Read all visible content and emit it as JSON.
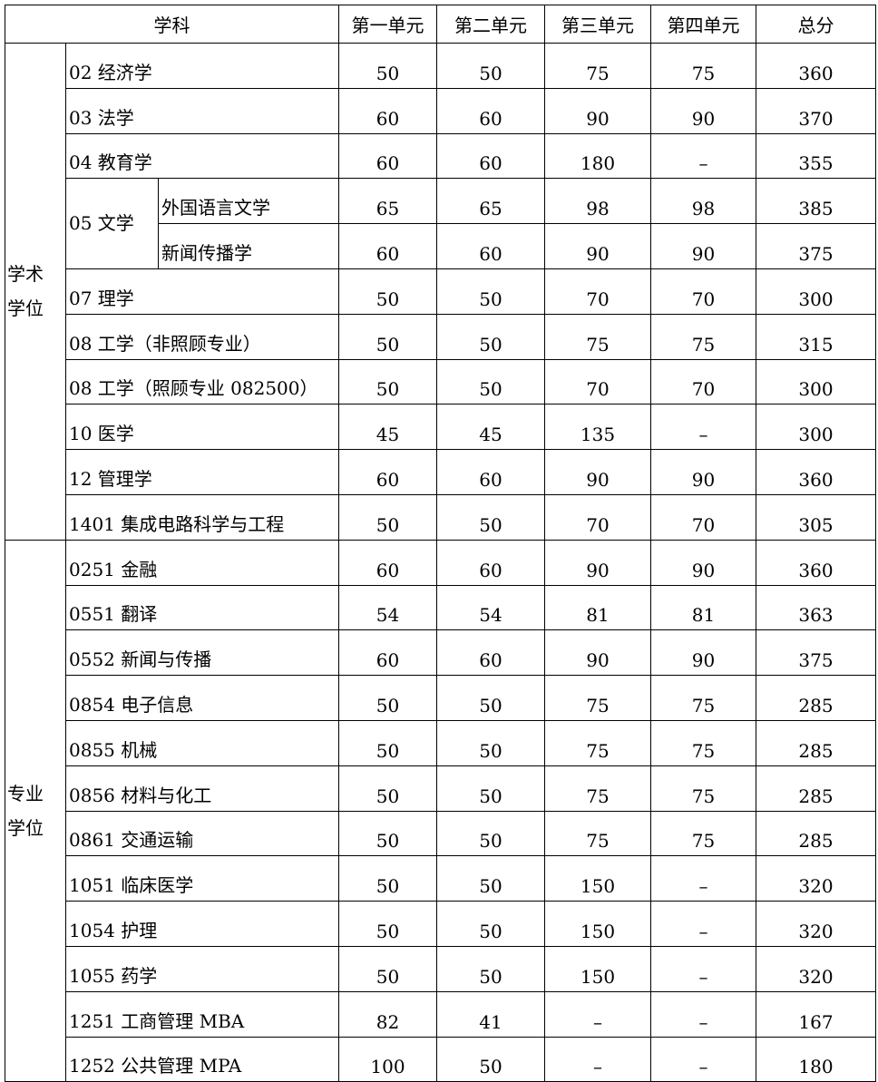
{
  "headers": {
    "subject": "学科",
    "u1": "第一单元",
    "u2": "第二单元",
    "u3": "第三单元",
    "u4": "第四单元",
    "total": "总分"
  },
  "groups": [
    {
      "name": "学术学位",
      "name_lines": [
        "学术",
        "学位"
      ],
      "rows": [
        {
          "subject": "02 经济学",
          "u1": "50",
          "u2": "50",
          "u3": "75",
          "u4": "75",
          "total": "360"
        },
        {
          "subject": "03 法学",
          "u1": "60",
          "u2": "60",
          "u3": "90",
          "u4": "90",
          "total": "370"
        },
        {
          "subject": "04 教育学",
          "u1": "60",
          "u2": "60",
          "u3": "180",
          "u4": "–",
          "total": "355"
        },
        {
          "subject": "05 文学",
          "sub": "外国语言文学",
          "u1": "65",
          "u2": "65",
          "u3": "98",
          "u4": "98",
          "total": "385"
        },
        {
          "subject": "05 文学",
          "sub": "新闻传播学",
          "u1": "60",
          "u2": "60",
          "u3": "90",
          "u4": "90",
          "total": "375"
        },
        {
          "subject": "07 理学",
          "u1": "50",
          "u2": "50",
          "u3": "70",
          "u4": "70",
          "total": "300"
        },
        {
          "subject": "08 工学（非照顾专业）",
          "u1": "50",
          "u2": "50",
          "u3": "75",
          "u4": "75",
          "total": "315"
        },
        {
          "subject": "08 工学（照顾专业 082500）",
          "u1": "50",
          "u2": "50",
          "u3": "70",
          "u4": "70",
          "total": "300"
        },
        {
          "subject": "10 医学",
          "u1": "45",
          "u2": "45",
          "u3": "135",
          "u4": "–",
          "total": "300"
        },
        {
          "subject": "12 管理学",
          "u1": "60",
          "u2": "60",
          "u3": "90",
          "u4": "90",
          "total": "360"
        },
        {
          "subject": "1401 集成电路科学与工程",
          "u1": "50",
          "u2": "50",
          "u3": "70",
          "u4": "70",
          "total": "305"
        }
      ]
    },
    {
      "name": "专业学位",
      "name_lines": [
        "专业",
        "学位"
      ],
      "rows": [
        {
          "subject": "0251 金融",
          "u1": "60",
          "u2": "60",
          "u3": "90",
          "u4": "90",
          "total": "360"
        },
        {
          "subject": "0551 翻译",
          "u1": "54",
          "u2": "54",
          "u3": "81",
          "u4": "81",
          "total": "363"
        },
        {
          "subject": "0552 新闻与传播",
          "u1": "60",
          "u2": "60",
          "u3": "90",
          "u4": "90",
          "total": "375"
        },
        {
          "subject": "0854 电子信息",
          "u1": "50",
          "u2": "50",
          "u3": "75",
          "u4": "75",
          "total": "285"
        },
        {
          "subject": "0855 机械",
          "u1": "50",
          "u2": "50",
          "u3": "75",
          "u4": "75",
          "total": "285"
        },
        {
          "subject": "0856 材料与化工",
          "u1": "50",
          "u2": "50",
          "u3": "75",
          "u4": "75",
          "total": "285"
        },
        {
          "subject": "0861 交通运输",
          "u1": "50",
          "u2": "50",
          "u3": "75",
          "u4": "75",
          "total": "285"
        },
        {
          "subject": "1051 临床医学",
          "u1": "50",
          "u2": "50",
          "u3": "150",
          "u4": "–",
          "total": "320"
        },
        {
          "subject": "1054 护理",
          "u1": "50",
          "u2": "50",
          "u3": "150",
          "u4": "–",
          "total": "320"
        },
        {
          "subject": "1055 药学",
          "u1": "50",
          "u2": "50",
          "u3": "150",
          "u4": "–",
          "total": "320"
        },
        {
          "subject": "1251 工商管理 MBA",
          "u1": "82",
          "u2": "41",
          "u3": "–",
          "u4": "–",
          "total": "167"
        },
        {
          "subject": "1252 公共管理 MPA",
          "u1": "100",
          "u2": "50",
          "u3": "–",
          "u4": "–",
          "total": "180"
        }
      ]
    }
  ]
}
